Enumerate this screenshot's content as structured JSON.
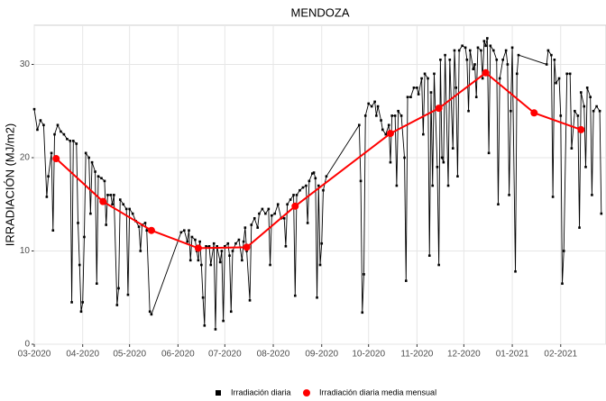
{
  "chart_data": {
    "type": "line",
    "title": "MENDOZA",
    "y_label": "IRRADIACIÓN (MJ/m2)",
    "xlim": [
      0,
      366
    ],
    "ylim": [
      0,
      34.2
    ],
    "xticks": [
      {
        "value": 0,
        "label": "03-2020"
      },
      {
        "value": 31,
        "label": "04-2020"
      },
      {
        "value": 61,
        "label": "05-2020"
      },
      {
        "value": 92,
        "label": "06-2020"
      },
      {
        "value": 122,
        "label": "07-2020"
      },
      {
        "value": 153,
        "label": "08-2020"
      },
      {
        "value": 184,
        "label": "09-2020"
      },
      {
        "value": 214,
        "label": "10-2020"
      },
      {
        "value": 245,
        "label": "11-2020"
      },
      {
        "value": 275,
        "label": "12-2020"
      },
      {
        "value": 306,
        "label": "01-2021"
      },
      {
        "value": 337,
        "label": "02-2021"
      }
    ],
    "yticks": [
      0,
      10,
      20,
      30
    ],
    "grid": true,
    "legend": "bottom",
    "series": [
      {
        "name": "Irradiación diaria",
        "color": "#000000",
        "marker": "square",
        "x": [
          0,
          2,
          4,
          6,
          8,
          9,
          11,
          12,
          13,
          15,
          17,
          19,
          21,
          23,
          24,
          25,
          27,
          28,
          29,
          30,
          31,
          32,
          33,
          35,
          36,
          37,
          39,
          40,
          41,
          43,
          45,
          46,
          47,
          49,
          50,
          51,
          53,
          54,
          55,
          57,
          59,
          60,
          61,
          63,
          65,
          67,
          68,
          69,
          71,
          72,
          74,
          75,
          94,
          96,
          98,
          99,
          100,
          101,
          103,
          104,
          105,
          106,
          107,
          108,
          109,
          110,
          112,
          113,
          115,
          116,
          117,
          119,
          120,
          121,
          122,
          124,
          125,
          126,
          127,
          129,
          131,
          133,
          134,
          135,
          136,
          138,
          139,
          141,
          143,
          144,
          146,
          148,
          150,
          151,
          152,
          154,
          156,
          158,
          160,
          161,
          162,
          164,
          166,
          167,
          168,
          170,
          172,
          174,
          175,
          176,
          178,
          179,
          180,
          181,
          182,
          183,
          184,
          185,
          187,
          208,
          209,
          210,
          211,
          212,
          214,
          216,
          218,
          219,
          220,
          222,
          223,
          225,
          227,
          228,
          229,
          231,
          232,
          233,
          235,
          237,
          238,
          239,
          241,
          243,
          245,
          246,
          248,
          249,
          250,
          252,
          253,
          254,
          255,
          256,
          258,
          259,
          260,
          261,
          262,
          263,
          265,
          266,
          268,
          269,
          270,
          271,
          272,
          274,
          276,
          277,
          278,
          279,
          281,
          282,
          283,
          284,
          286,
          287,
          288,
          289,
          290,
          291,
          292,
          294,
          296,
          297,
          298,
          300,
          302,
          303,
          304,
          305,
          306,
          308,
          309,
          310,
          328,
          329,
          331,
          332,
          333,
          334,
          336,
          337,
          338,
          339,
          341,
          343,
          344,
          346,
          348,
          349,
          350,
          352,
          353,
          354,
          356,
          357,
          358,
          360,
          362,
          363
        ],
        "values": [
          25.2,
          23.0,
          24.0,
          23.5,
          15.8,
          18.0,
          20.5,
          12.2,
          22.5,
          23.5,
          22.8,
          22.5,
          22.0,
          21.8,
          4.5,
          21.8,
          21.5,
          13.0,
          8.5,
          3.5,
          4.5,
          11.5,
          20.5,
          20.0,
          14.0,
          19.5,
          18.5,
          6.5,
          18.0,
          17.8,
          17.5,
          12.8,
          16.0,
          16.0,
          15.0,
          16.0,
          4.2,
          6.0,
          15.5,
          15.0,
          14.5,
          5.3,
          14.5,
          14.0,
          13.2,
          12.6,
          10.0,
          12.8,
          13.0,
          12.2,
          3.5,
          3.2,
          12.0,
          12.2,
          11.0,
          12.2,
          9.0,
          11.5,
          11.2,
          10.0,
          9.0,
          11.0,
          8.5,
          5.0,
          2.0,
          10.5,
          10.5,
          8.5,
          10.8,
          1.6,
          10.5,
          8.8,
          10.0,
          2.5,
          10.5,
          10.8,
          9.5,
          3.5,
          10.0,
          10.8,
          11.2,
          9.0,
          11.0,
          12.5,
          10.0,
          4.7,
          12.8,
          13.5,
          12.5,
          14.0,
          14.5,
          14.0,
          14.5,
          8.5,
          13.8,
          14.0,
          15.0,
          13.5,
          13.5,
          10.5,
          15.0,
          15.5,
          16.0,
          5.2,
          16.0,
          16.5,
          16.8,
          17.0,
          13.0,
          17.5,
          18.3,
          18.4,
          17.8,
          5.0,
          17.0,
          8.5,
          10.8,
          16.5,
          18.0,
          23.5,
          17.5,
          3.4,
          7.5,
          24.5,
          25.8,
          25.5,
          26.0,
          24.5,
          25.5,
          24.0,
          23.0,
          22.5,
          23.5,
          19.5,
          24.5,
          24.5,
          17.0,
          25.0,
          24.5,
          20.0,
          6.8,
          26.5,
          26.5,
          27.5,
          27.5,
          26.8,
          28.5,
          22.5,
          29.0,
          28.5,
          9.5,
          27.0,
          17.0,
          29.0,
          19.0,
          8.5,
          30.5,
          20.0,
          19.5,
          31.0,
          17.0,
          30.5,
          21.0,
          31.5,
          27.5,
          18.0,
          31.5,
          32.0,
          31.8,
          30.5,
          25.0,
          31.5,
          29.5,
          30.0,
          26.5,
          31.8,
          31.5,
          28.5,
          32.5,
          32.0,
          32.8,
          20.5,
          32.0,
          31.5,
          30.5,
          15.0,
          28.5,
          30.5,
          31.5,
          30.0,
          16.0,
          25.0,
          31.8,
          7.8,
          29.0,
          31.0,
          30.0,
          31.5,
          31.0,
          15.8,
          30.5,
          28.0,
          28.5,
          24.5,
          6.5,
          10.0,
          29.0,
          29.0,
          21.0,
          25.0,
          24.5,
          12.5,
          27.0,
          25.5,
          19.0,
          27.5,
          26.5,
          16.0,
          25.0,
          25.5,
          25.0,
          14.0
        ]
      },
      {
        "name": "Irradiación diaria media mensual",
        "color": "#ff0000",
        "marker": "circle",
        "x": [
          14,
          44,
          75,
          105,
          136,
          167,
          228,
          259,
          289,
          320,
          350
        ],
        "values": [
          19.9,
          15.3,
          12.2,
          10.3,
          10.4,
          14.8,
          22.6,
          25.3,
          29.1,
          24.8,
          23.0
        ]
      }
    ]
  }
}
